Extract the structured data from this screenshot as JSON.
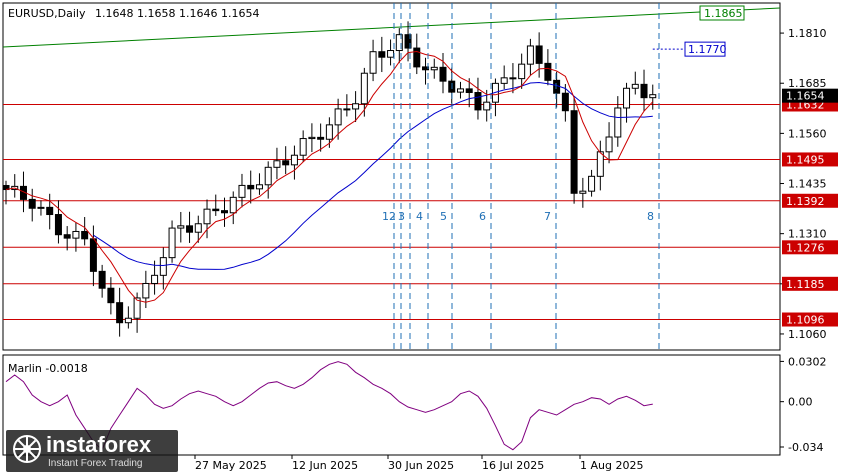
{
  "chart_data": [
    {
      "type": "candlestick",
      "title": "EURUSD,Daily",
      "ohlc_text": "1.1648 1.1658 1.1646 1.1654",
      "ylim": [
        1.102,
        1.1885
      ],
      "y_ticks": [
        "1.1810",
        "1.1685",
        "1.1560",
        "1.1435",
        "1.1310",
        "1.1185",
        "1.1060"
      ],
      "x_ticks": [
        "27 May 2025",
        "12 Jun 2025",
        "30 Jun 2025",
        "16 Jul 2025",
        "1 Aug 2025"
      ],
      "current_price": "1.1654",
      "horizontal_levels": [
        {
          "label": "1.1632",
          "value": 1.1632,
          "color": "#cc0000"
        },
        {
          "label": "1.1495",
          "value": 1.1495,
          "color": "#cc0000"
        },
        {
          "label": "1.1392",
          "value": 1.1392,
          "color": "#cc0000"
        },
        {
          "label": "1.1276",
          "value": 1.1276,
          "color": "#cc0000"
        },
        {
          "label": "1.1185",
          "value": 1.1185,
          "color": "#cc0000"
        },
        {
          "label": "1.1096",
          "value": 1.1096,
          "color": "#cc0000"
        }
      ],
      "trend_line": {
        "label": "1.1865",
        "color": "#008000"
      },
      "ma_blue_label": "1.1770",
      "cycle_lines": [
        "1",
        "2",
        "3",
        "4",
        "5",
        "6",
        "7",
        "8"
      ],
      "colors": {
        "blue_ma": "#0000cc",
        "red_ma": "#cc0000",
        "trend": "#008000",
        "levels": "#cc0000",
        "cycles": "#1f6fb5",
        "oscillator": "#800080"
      }
    },
    {
      "type": "line",
      "title": "Marlin -0.0018",
      "ylim": [
        -0.04,
        0.035
      ],
      "y_ticks": [
        "0.0302",
        "0.00",
        "-0.034"
      ],
      "series": [
        {
          "values": [
            0.015,
            0.02,
            0.015,
            0.005,
            0.0,
            -0.003,
            0.0,
            0.005,
            -0.01,
            -0.02,
            -0.03,
            -0.036,
            -0.02,
            -0.01,
            0.0,
            0.01,
            0.005,
            -0.002,
            -0.005,
            -0.003,
            0.002,
            0.006,
            0.008,
            0.006,
            0.004,
            0.0,
            -0.003,
            0.0,
            0.005,
            0.01,
            0.014,
            0.015,
            0.012,
            0.01,
            0.013,
            0.018,
            0.024,
            0.028,
            0.03,
            0.028,
            0.022,
            0.018,
            0.013,
            0.01,
            0.006,
            0.0,
            -0.004,
            -0.006,
            -0.008,
            -0.006,
            -0.003,
            0.0,
            0.006,
            0.008,
            0.004,
            -0.005,
            -0.018,
            -0.032,
            -0.036,
            -0.03,
            -0.012,
            -0.006,
            -0.008,
            -0.01,
            -0.006,
            -0.002,
            0.0,
            0.003,
            0.002,
            -0.002,
            0.002,
            0.004,
            0.001,
            -0.003,
            -0.0018
          ]
        }
      ]
    }
  ],
  "watermark": {
    "brand": "instaforex",
    "tagline": "Instant Forex Trading"
  }
}
